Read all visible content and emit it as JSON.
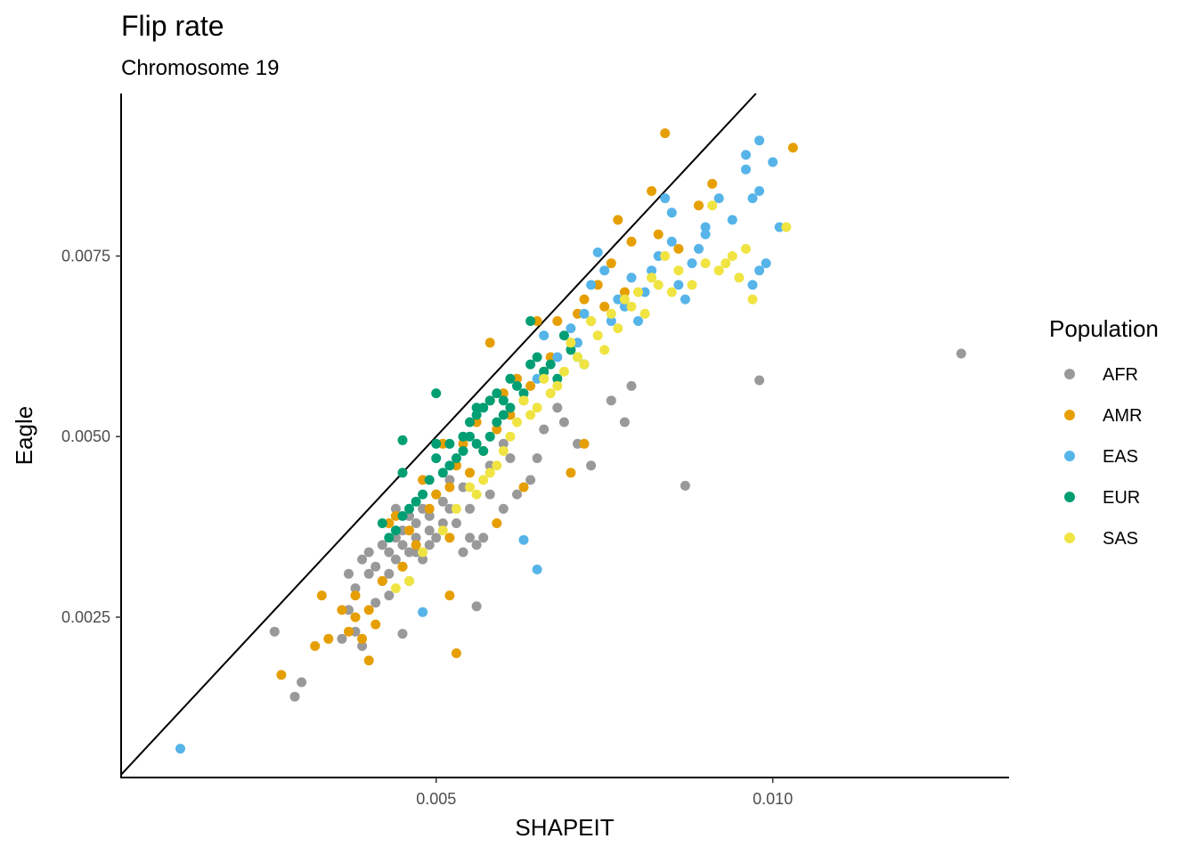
{
  "chart_data": {
    "type": "scatter",
    "title": "Flip rate",
    "subtitle": "Chromosome 19",
    "xlabel": "SHAPEIT",
    "ylabel": "Eagle",
    "xlim": [
      0.00032,
      0.01351
    ],
    "ylim": [
      0.00028,
      0.00975
    ],
    "x_ticks": [
      0.005,
      0.01
    ],
    "x_tick_labels": [
      "0.005",
      "0.010"
    ],
    "y_ticks": [
      0.0025,
      0.005,
      0.0075
    ],
    "y_tick_labels": [
      "0.0025",
      "0.0050",
      "0.0075"
    ],
    "grid": false,
    "reference_line": {
      "slope": 1,
      "intercept": 0,
      "label": "y = x"
    },
    "legend": {
      "title": "Population",
      "position": "right"
    },
    "series": [
      {
        "name": "AFR",
        "color": "#999999",
        "points": [
          [
            0.0128,
            0.00615
          ],
          [
            0.0098,
            0.00578
          ],
          [
            0.0087,
            0.00432
          ],
          [
            0.0078,
            0.0052
          ],
          [
            0.0079,
            0.0057
          ],
          [
            0.0076,
            0.0055
          ],
          [
            0.0073,
            0.0046
          ],
          [
            0.0071,
            0.0049
          ],
          [
            0.0069,
            0.0052
          ],
          [
            0.0068,
            0.0054
          ],
          [
            0.0066,
            0.0051
          ],
          [
            0.0065,
            0.0047
          ],
          [
            0.0064,
            0.0044
          ],
          [
            0.0062,
            0.0042
          ],
          [
            0.0061,
            0.0047
          ],
          [
            0.006,
            0.004
          ],
          [
            0.006,
            0.0049
          ],
          [
            0.0058,
            0.0042
          ],
          [
            0.0058,
            0.0046
          ],
          [
            0.0057,
            0.0036
          ],
          [
            0.0056,
            0.00265
          ],
          [
            0.0056,
            0.0035
          ],
          [
            0.0055,
            0.0036
          ],
          [
            0.0055,
            0.004
          ],
          [
            0.0054,
            0.0043
          ],
          [
            0.0054,
            0.0034
          ],
          [
            0.0053,
            0.0038
          ],
          [
            0.0052,
            0.004
          ],
          [
            0.0052,
            0.0044
          ],
          [
            0.0051,
            0.0038
          ],
          [
            0.0051,
            0.0041
          ],
          [
            0.005,
            0.0036
          ],
          [
            0.005,
            0.0042
          ],
          [
            0.0049,
            0.0039
          ],
          [
            0.0049,
            0.0035
          ],
          [
            0.0049,
            0.0037
          ],
          [
            0.0048,
            0.0033
          ],
          [
            0.0048,
            0.004
          ],
          [
            0.0047,
            0.0034
          ],
          [
            0.0047,
            0.0038
          ],
          [
            0.0047,
            0.0036
          ],
          [
            0.0046,
            0.003
          ],
          [
            0.0046,
            0.0034
          ],
          [
            0.0046,
            0.0039
          ],
          [
            0.0045,
            0.0032
          ],
          [
            0.0045,
            0.0035
          ],
          [
            0.0045,
            0.0037
          ],
          [
            0.0045,
            0.00227
          ],
          [
            0.0044,
            0.0033
          ],
          [
            0.0044,
            0.0036
          ],
          [
            0.0044,
            0.004
          ],
          [
            0.0043,
            0.0031
          ],
          [
            0.0043,
            0.0034
          ],
          [
            0.0043,
            0.0028
          ],
          [
            0.0042,
            0.003
          ],
          [
            0.0042,
            0.0035
          ],
          [
            0.0041,
            0.0027
          ],
          [
            0.0041,
            0.0032
          ],
          [
            0.004,
            0.0034
          ],
          [
            0.004,
            0.0031
          ],
          [
            0.0039,
            0.0033
          ],
          [
            0.0039,
            0.0021
          ],
          [
            0.0038,
            0.0023
          ],
          [
            0.0038,
            0.0029
          ],
          [
            0.0037,
            0.0031
          ],
          [
            0.0037,
            0.0026
          ],
          [
            0.0036,
            0.0022
          ],
          [
            0.003,
            0.0016
          ],
          [
            0.0029,
            0.0014
          ],
          [
            0.0026,
            0.0023
          ]
        ]
      },
      {
        "name": "AMR",
        "color": "#E69F00",
        "points": [
          [
            0.0103,
            0.009
          ],
          [
            0.0084,
            0.0092
          ],
          [
            0.0082,
            0.0084
          ],
          [
            0.0091,
            0.0085
          ],
          [
            0.0089,
            0.0082
          ],
          [
            0.0086,
            0.0076
          ],
          [
            0.0083,
            0.0078
          ],
          [
            0.0079,
            0.0077
          ],
          [
            0.0078,
            0.007
          ],
          [
            0.0077,
            0.008
          ],
          [
            0.0076,
            0.0074
          ],
          [
            0.0075,
            0.0068
          ],
          [
            0.0074,
            0.0071
          ],
          [
            0.0073,
            0.0066
          ],
          [
            0.0072,
            0.0069
          ],
          [
            0.0071,
            0.0067
          ],
          [
            0.007,
            0.0063
          ],
          [
            0.0068,
            0.0066
          ],
          [
            0.0067,
            0.0061
          ],
          [
            0.0066,
            0.0059
          ],
          [
            0.0065,
            0.0066
          ],
          [
            0.0064,
            0.0057
          ],
          [
            0.0063,
            0.0055
          ],
          [
            0.0062,
            0.0058
          ],
          [
            0.0061,
            0.0053
          ],
          [
            0.006,
            0.0056
          ],
          [
            0.0059,
            0.0051
          ],
          [
            0.0058,
            0.0063
          ],
          [
            0.0058,
            0.0055
          ],
          [
            0.0057,
            0.0048
          ],
          [
            0.0056,
            0.0052
          ],
          [
            0.0055,
            0.0045
          ],
          [
            0.0054,
            0.0049
          ],
          [
            0.0053,
            0.0046
          ],
          [
            0.0052,
            0.0043
          ],
          [
            0.0052,
            0.0036
          ],
          [
            0.0051,
            0.0049
          ],
          [
            0.005,
            0.0042
          ],
          [
            0.0049,
            0.004
          ],
          [
            0.0048,
            0.0044
          ],
          [
            0.0047,
            0.0035
          ],
          [
            0.0046,
            0.0037
          ],
          [
            0.0045,
            0.0032
          ],
          [
            0.0044,
            0.0039
          ],
          [
            0.0043,
            0.0038
          ],
          [
            0.0042,
            0.003
          ],
          [
            0.0041,
            0.0024
          ],
          [
            0.004,
            0.0026
          ],
          [
            0.004,
            0.0019
          ],
          [
            0.0039,
            0.0022
          ],
          [
            0.0038,
            0.0028
          ],
          [
            0.0038,
            0.0025
          ],
          [
            0.0037,
            0.0023
          ],
          [
            0.0036,
            0.0026
          ],
          [
            0.0034,
            0.0022
          ],
          [
            0.0033,
            0.0028
          ],
          [
            0.0032,
            0.0021
          ],
          [
            0.0027,
            0.0017
          ],
          [
            0.0053,
            0.002
          ],
          [
            0.0052,
            0.0028
          ],
          [
            0.0059,
            0.0038
          ],
          [
            0.0063,
            0.0043
          ],
          [
            0.007,
            0.0045
          ],
          [
            0.0072,
            0.0049
          ]
        ]
      },
      {
        "name": "EAS",
        "color": "#56B4E9",
        "points": [
          [
            0.0098,
            0.0091
          ],
          [
            0.0096,
            0.0087
          ],
          [
            0.0096,
            0.0089
          ],
          [
            0.0097,
            0.0083
          ],
          [
            0.0098,
            0.0084
          ],
          [
            0.01,
            0.0088
          ],
          [
            0.0101,
            0.0079
          ],
          [
            0.0099,
            0.0074
          ],
          [
            0.0098,
            0.0073
          ],
          [
            0.0097,
            0.0071
          ],
          [
            0.0094,
            0.008
          ],
          [
            0.0092,
            0.0083
          ],
          [
            0.009,
            0.0079
          ],
          [
            0.009,
            0.0078
          ],
          [
            0.0089,
            0.0076
          ],
          [
            0.0088,
            0.0074
          ],
          [
            0.0087,
            0.0069
          ],
          [
            0.0086,
            0.0071
          ],
          [
            0.0085,
            0.0081
          ],
          [
            0.0085,
            0.0077
          ],
          [
            0.0084,
            0.0083
          ],
          [
            0.0083,
            0.0075
          ],
          [
            0.0082,
            0.0073
          ],
          [
            0.0081,
            0.007
          ],
          [
            0.008,
            0.0066
          ],
          [
            0.0079,
            0.0072
          ],
          [
            0.0078,
            0.0068
          ],
          [
            0.0077,
            0.0069
          ],
          [
            0.0076,
            0.0066
          ],
          [
            0.0075,
            0.0073
          ],
          [
            0.0074,
            0.00755
          ],
          [
            0.0073,
            0.0071
          ],
          [
            0.0072,
            0.0067
          ],
          [
            0.0071,
            0.0063
          ],
          [
            0.007,
            0.0065
          ],
          [
            0.0068,
            0.0061
          ],
          [
            0.0066,
            0.0064
          ],
          [
            0.0065,
            0.0058
          ],
          [
            0.0063,
            0.00357
          ],
          [
            0.0065,
            0.00316
          ],
          [
            0.0048,
            0.00257
          ],
          [
            0.0012,
            0.00068
          ]
        ]
      },
      {
        "name": "EUR",
        "color": "#009E73",
        "points": [
          [
            0.005,
            0.0056
          ],
          [
            0.0045,
            0.00495
          ],
          [
            0.0045,
            0.0045
          ],
          [
            0.005,
            0.0049
          ],
          [
            0.0052,
            0.0049
          ],
          [
            0.0054,
            0.005
          ],
          [
            0.0055,
            0.0052
          ],
          [
            0.0056,
            0.0053
          ],
          [
            0.0057,
            0.0054
          ],
          [
            0.0058,
            0.0055
          ],
          [
            0.0059,
            0.0056
          ],
          [
            0.006,
            0.0055
          ],
          [
            0.0061,
            0.0058
          ],
          [
            0.0062,
            0.0057
          ],
          [
            0.0063,
            0.0056
          ],
          [
            0.0064,
            0.006
          ],
          [
            0.0065,
            0.0061
          ],
          [
            0.0066,
            0.0059
          ],
          [
            0.0067,
            0.006
          ],
          [
            0.0068,
            0.0058
          ],
          [
            0.0069,
            0.0064
          ],
          [
            0.007,
            0.0062
          ],
          [
            0.0071,
            0.0061
          ],
          [
            0.0072,
            0.006
          ],
          [
            0.0064,
            0.0066
          ],
          [
            0.0056,
            0.0054
          ],
          [
            0.0055,
            0.005
          ],
          [
            0.0054,
            0.0048
          ],
          [
            0.0053,
            0.0047
          ],
          [
            0.0052,
            0.0046
          ],
          [
            0.0051,
            0.0045
          ],
          [
            0.005,
            0.0047
          ],
          [
            0.0049,
            0.0044
          ],
          [
            0.0048,
            0.0042
          ],
          [
            0.0047,
            0.0041
          ],
          [
            0.0046,
            0.004
          ],
          [
            0.0045,
            0.0039
          ],
          [
            0.0044,
            0.0037
          ],
          [
            0.0043,
            0.0036
          ],
          [
            0.0042,
            0.0038
          ],
          [
            0.0057,
            0.0048
          ],
          [
            0.0058,
            0.005
          ],
          [
            0.0056,
            0.0049
          ],
          [
            0.0059,
            0.0052
          ],
          [
            0.006,
            0.0053
          ],
          [
            0.0061,
            0.0054
          ]
        ]
      },
      {
        "name": "SAS",
        "color": "#F0E442",
        "points": [
          [
            0.0102,
            0.0079
          ],
          [
            0.0096,
            0.0076
          ],
          [
            0.0094,
            0.0075
          ],
          [
            0.0092,
            0.0073
          ],
          [
            0.009,
            0.0074
          ],
          [
            0.0097,
            0.0069
          ],
          [
            0.0095,
            0.0072
          ],
          [
            0.0093,
            0.0074
          ],
          [
            0.0091,
            0.0082
          ],
          [
            0.0088,
            0.0071
          ],
          [
            0.0086,
            0.0073
          ],
          [
            0.0085,
            0.007
          ],
          [
            0.0084,
            0.0075
          ],
          [
            0.0083,
            0.0071
          ],
          [
            0.0082,
            0.0072
          ],
          [
            0.0081,
            0.0067
          ],
          [
            0.008,
            0.007
          ],
          [
            0.0079,
            0.0068
          ],
          [
            0.0078,
            0.0069
          ],
          [
            0.0077,
            0.0065
          ],
          [
            0.0076,
            0.0067
          ],
          [
            0.0075,
            0.0062
          ],
          [
            0.0074,
            0.0064
          ],
          [
            0.0073,
            0.0066
          ],
          [
            0.0072,
            0.006
          ],
          [
            0.0071,
            0.0061
          ],
          [
            0.007,
            0.0063
          ],
          [
            0.0069,
            0.0059
          ],
          [
            0.0068,
            0.0057
          ],
          [
            0.0067,
            0.0056
          ],
          [
            0.0066,
            0.0058
          ],
          [
            0.0065,
            0.0054
          ],
          [
            0.0064,
            0.0053
          ],
          [
            0.0063,
            0.0055
          ],
          [
            0.0062,
            0.0052
          ],
          [
            0.0061,
            0.005
          ],
          [
            0.006,
            0.0048
          ],
          [
            0.0059,
            0.0046
          ],
          [
            0.0058,
            0.0045
          ],
          [
            0.0057,
            0.0044
          ],
          [
            0.0056,
            0.0042
          ],
          [
            0.0055,
            0.0043
          ],
          [
            0.0053,
            0.004
          ],
          [
            0.0051,
            0.0037
          ],
          [
            0.0048,
            0.0034
          ],
          [
            0.0046,
            0.003
          ],
          [
            0.0044,
            0.0029
          ]
        ]
      }
    ]
  }
}
